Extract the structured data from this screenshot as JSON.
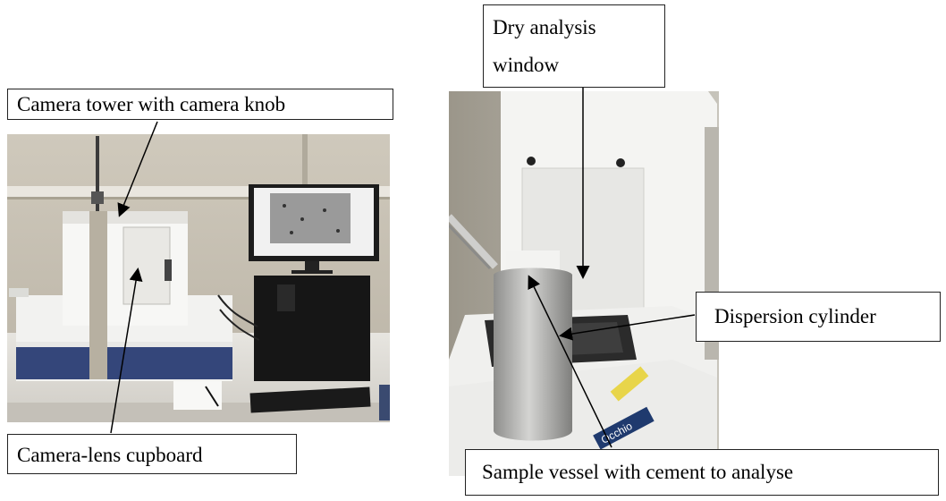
{
  "labels": {
    "camera_tower": "Camera tower with camera knob",
    "camera_lens": "Camera-lens cupboard",
    "dry_window_line1": "Dry analysis",
    "dry_window_line2": "window",
    "dispersion": "Dispersion cylinder",
    "sample_vessel": "Sample vessel with cement to analyse"
  },
  "photo_text": {
    "brand": "Occhio"
  },
  "colors": {
    "label_border": "#222222",
    "arrow": "#000000"
  }
}
